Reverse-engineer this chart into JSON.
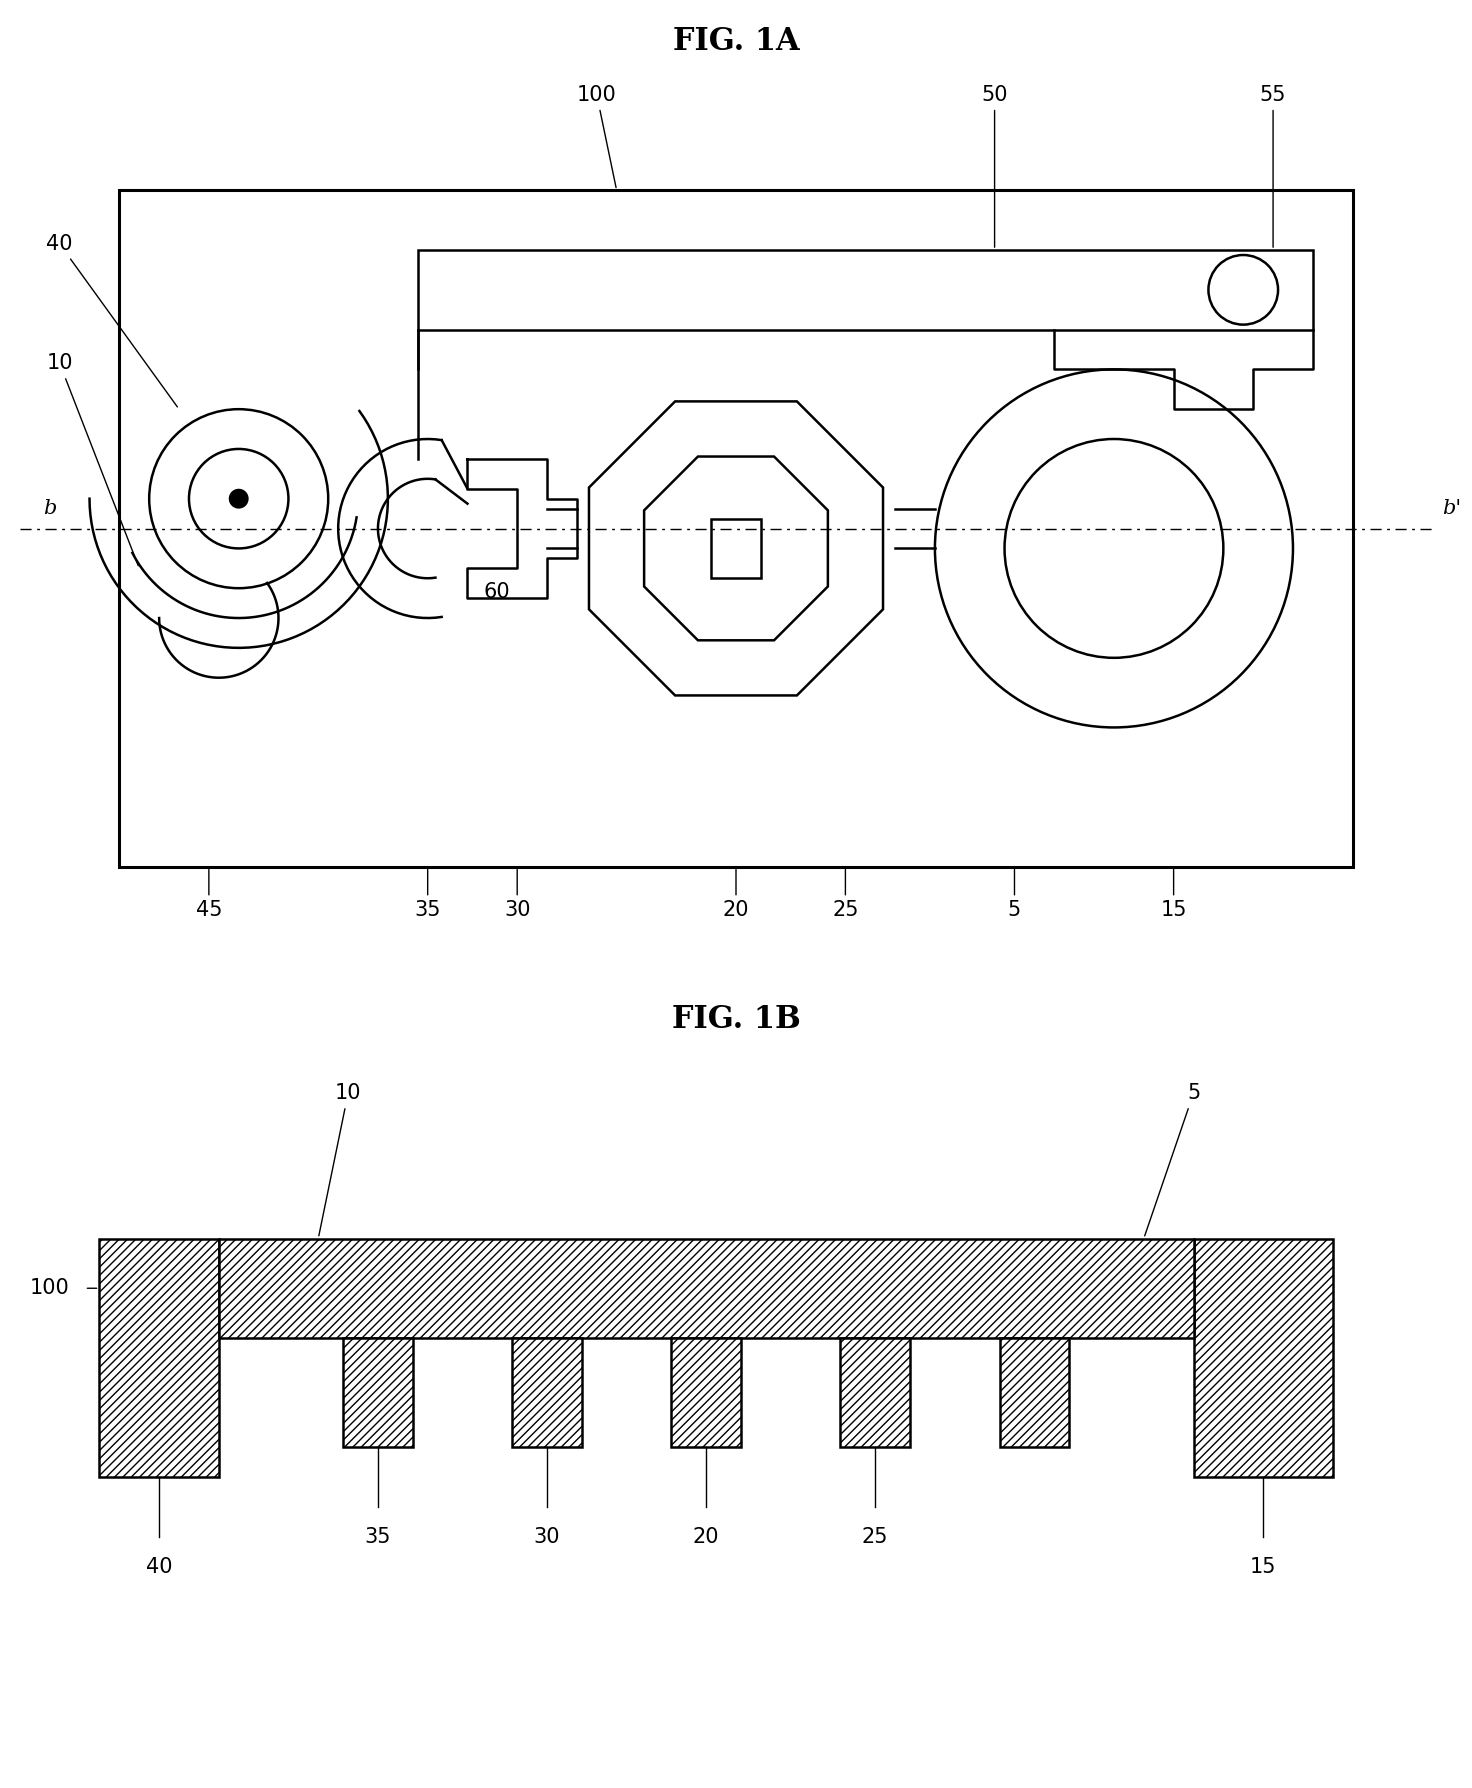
{
  "title_1a": "FIG. 1A",
  "title_1b": "FIG. 1B",
  "bg_color": "#ffffff",
  "line_color": "#000000",
  "lw": 1.8,
  "lw_thick": 2.2,
  "label_fontsize": 15,
  "title_fontsize": 22
}
